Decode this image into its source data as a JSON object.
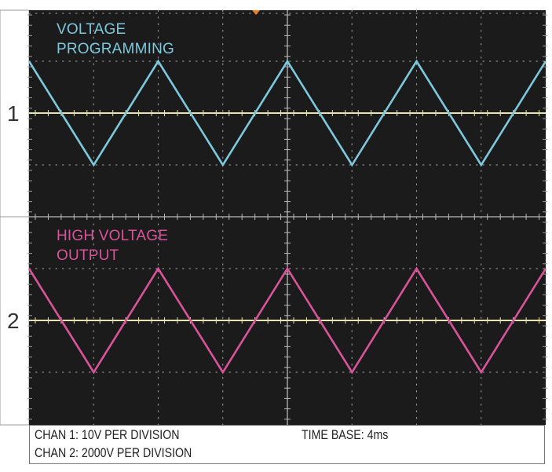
{
  "colors": {
    "screen": "#1b1b1b",
    "grid": "#8a8a8a",
    "reference_line": "#e8e3b0",
    "channel_1_trace": "#7cc8dc",
    "channel_2_trace": "#d9539a",
    "trigger_marker": "#f07f1f",
    "channel_gutter": "#ffffff"
  },
  "channels": [
    {
      "number": "1",
      "label_line1": "VOLTAGE",
      "label_line2": "PROGRAMMING"
    },
    {
      "number": "2",
      "label_line1": "HIGH VOLTAGE",
      "label_line2": "OUTPUT"
    }
  ],
  "footer": {
    "chan1_scale": "CHAN 1: 10V PER DIVISION",
    "chan2_scale": "CHAN 2: 2000V PER DIVISION",
    "time_base": "TIME BASE: 4ms"
  },
  "chart_data": {
    "type": "line",
    "x_divisions": 8,
    "y_divisions_per_channel": 4,
    "waveform": "triangle",
    "series": [
      {
        "name": "VOLTAGE PROGRAMMING",
        "channel": 1,
        "x_div": [
          0,
          1,
          2,
          3,
          4,
          5,
          6,
          7,
          8
        ],
        "y_div": [
          1,
          -1,
          1,
          -1,
          1,
          -1,
          1,
          -1,
          1
        ]
      },
      {
        "name": "HIGH VOLTAGE OUTPUT",
        "channel": 2,
        "x_div": [
          0,
          1,
          2,
          3,
          4,
          5,
          6,
          7,
          8
        ],
        "y_div": [
          1,
          -1,
          1,
          -1,
          1,
          -1,
          1,
          -1,
          1
        ]
      }
    ]
  }
}
